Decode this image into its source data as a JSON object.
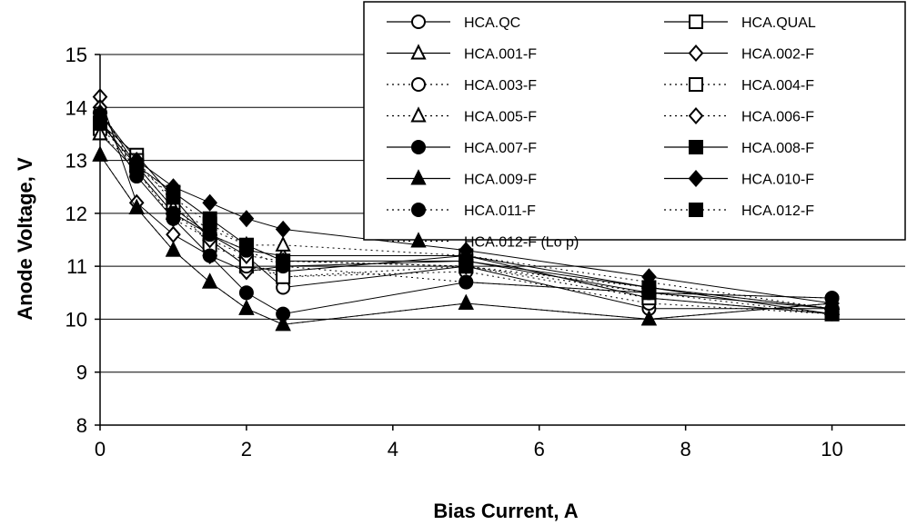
{
  "chart_data": {
    "type": "line",
    "title": "",
    "xlabel": "Bias Current, A",
    "ylabel": "Anode Voltage, V",
    "xlim": [
      0,
      11
    ],
    "ylim": [
      8,
      15
    ],
    "xticks": [
      0,
      2,
      4,
      6,
      8,
      10
    ],
    "yticks": [
      8,
      9,
      10,
      11,
      12,
      13,
      14,
      15
    ],
    "grid": "horizontal",
    "legend_position": "top-right",
    "series": [
      {
        "name": "HCA.QC",
        "marker": "circle",
        "fill": "open",
        "line": "solid",
        "x": [
          0,
          0.5,
          1,
          1.5,
          2,
          2.5,
          5,
          7.5,
          10
        ],
        "y": [
          13.9,
          12.9,
          12.1,
          11.6,
          11.2,
          10.6,
          11.0,
          10.2,
          10.2
        ]
      },
      {
        "name": "HCA.QUAL",
        "marker": "square",
        "fill": "open",
        "line": "solid",
        "x": [
          0,
          0.5,
          1,
          1.5,
          2,
          2.5,
          5,
          7.5,
          10
        ],
        "y": [
          13.7,
          13.1,
          12.3,
          11.5,
          11.0,
          10.9,
          11.2,
          10.4,
          10.1
        ]
      },
      {
        "name": "HCA.001-F",
        "marker": "triangle",
        "fill": "open",
        "line": "solid",
        "x": [
          0,
          0.5,
          1,
          1.5,
          2,
          2.5,
          5,
          7.5,
          10
        ],
        "y": [
          13.5,
          12.8,
          12.0,
          11.6,
          11.3,
          11.2,
          11.2,
          10.6,
          10.2
        ]
      },
      {
        "name": "HCA.002-F",
        "marker": "diamond",
        "fill": "open",
        "line": "solid",
        "x": [
          0,
          0.5,
          1,
          1.5,
          2,
          2.5,
          5,
          7.5,
          10
        ],
        "y": [
          14.2,
          12.2,
          11.6,
          11.2,
          10.9,
          11.0,
          11.1,
          10.5,
          10.2
        ]
      },
      {
        "name": "HCA.003-F",
        "marker": "circle",
        "fill": "open",
        "line": "dotted",
        "x": [
          0,
          0.5,
          1,
          1.5,
          2,
          2.5,
          5,
          7.5,
          10
        ],
        "y": [
          13.8,
          12.8,
          12.0,
          11.5,
          11.0,
          10.8,
          10.9,
          10.3,
          10.1
        ]
      },
      {
        "name": "HCA.004-F",
        "marker": "square",
        "fill": "open",
        "line": "dotted",
        "x": [
          0,
          0.5,
          1,
          1.5,
          2,
          2.5,
          5,
          7.5,
          10
        ],
        "y": [
          13.6,
          13.0,
          12.2,
          11.4,
          11.1,
          10.8,
          11.0,
          10.4,
          10.1
        ]
      },
      {
        "name": "HCA.005-F",
        "marker": "triangle",
        "fill": "open",
        "line": "dotted",
        "x": [
          0,
          0.5,
          1,
          1.5,
          2,
          2.5,
          5,
          7.5,
          10
        ],
        "y": [
          13.5,
          12.9,
          12.1,
          11.7,
          11.4,
          11.4,
          11.2,
          10.7,
          10.2
        ]
      },
      {
        "name": "HCA.006-F",
        "marker": "diamond",
        "fill": "open",
        "line": "dotted",
        "x": [
          0,
          0.5,
          1,
          1.5,
          2,
          2.5,
          5,
          7.5,
          10
        ],
        "y": [
          14.0,
          12.8,
          11.9,
          11.5,
          11.2,
          11.1,
          11.0,
          10.6,
          10.2
        ]
      },
      {
        "name": "HCA.007-F",
        "marker": "circle",
        "fill": "filled",
        "line": "solid",
        "x": [
          0,
          0.5,
          1,
          1.5,
          2,
          2.5,
          5,
          7.5,
          10
        ],
        "y": [
          13.8,
          12.7,
          11.9,
          11.2,
          10.5,
          10.1,
          10.7,
          10.5,
          10.4
        ]
      },
      {
        "name": "HCA.008-F",
        "marker": "square",
        "fill": "filled",
        "line": "solid",
        "x": [
          0,
          0.5,
          1,
          1.5,
          2,
          2.5,
          5,
          7.5,
          10
        ],
        "y": [
          13.7,
          12.9,
          12.4,
          11.9,
          11.4,
          11.1,
          11.1,
          10.6,
          10.1
        ]
      },
      {
        "name": "HCA.009-F",
        "marker": "triangle",
        "fill": "filled",
        "line": "solid",
        "x": [
          0,
          0.5,
          1,
          1.5,
          2,
          2.5,
          5,
          7.5,
          10
        ],
        "y": [
          13.1,
          12.1,
          11.3,
          10.7,
          10.2,
          9.9,
          10.3,
          10.0,
          10.3
        ]
      },
      {
        "name": "HCA.010-F",
        "marker": "diamond",
        "fill": "filled",
        "line": "solid",
        "x": [
          0,
          0.5,
          1,
          1.5,
          2,
          2.5,
          5,
          7.5,
          10
        ],
        "y": [
          13.9,
          13.0,
          12.5,
          12.2,
          11.9,
          11.7,
          11.3,
          10.8,
          10.3
        ]
      },
      {
        "name": "HCA.011-F",
        "marker": "circle",
        "fill": "filled",
        "line": "dotted",
        "x": [
          0,
          0.5,
          1,
          1.5,
          2,
          2.5,
          5,
          7.5,
          10
        ],
        "y": [
          13.8,
          12.8,
          12.0,
          11.6,
          11.3,
          11.0,
          10.7,
          10.5,
          10.4
        ]
      },
      {
        "name": "HCA.012-F",
        "marker": "square",
        "fill": "filled",
        "line": "dotted",
        "x": [
          0,
          0.5,
          1,
          1.5,
          2,
          2.5,
          5,
          7.5,
          10
        ],
        "y": [
          13.7,
          12.9,
          12.3,
          11.8,
          11.4,
          11.1,
          11.0,
          10.5,
          10.1
        ]
      },
      {
        "name": "HCA.012-F (Lo p)",
        "marker": "triangle",
        "fill": "filled",
        "line": "dotted",
        "x": [
          0,
          0.5,
          1,
          1.5,
          2,
          2.5,
          5,
          7.5,
          10
        ],
        "y": [
          13.1,
          12.1,
          11.3,
          10.7,
          10.2,
          9.9,
          10.3,
          10.0,
          10.3
        ]
      }
    ]
  }
}
